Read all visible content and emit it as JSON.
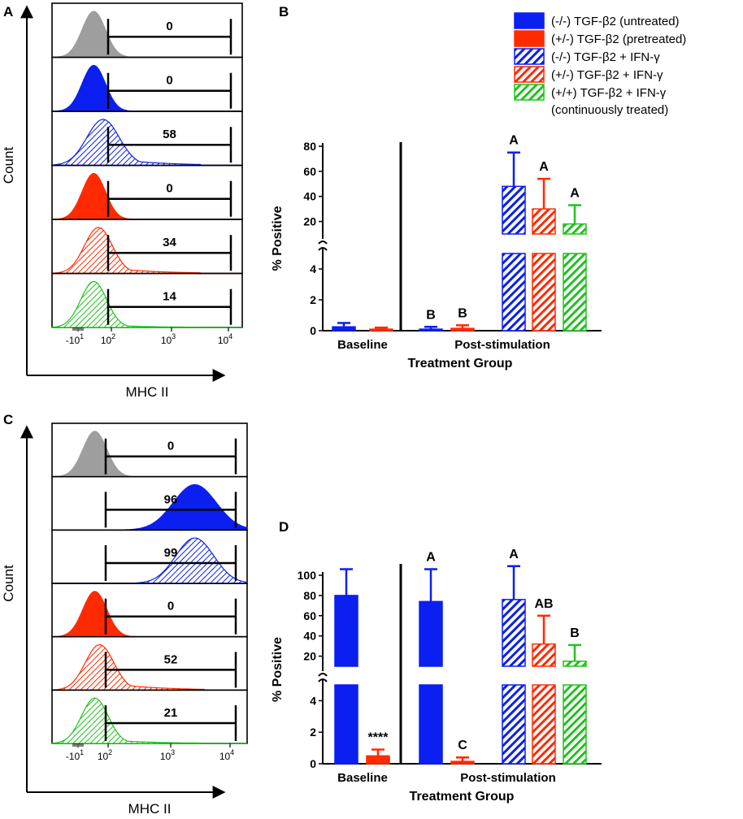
{
  "colors": {
    "blue": "#0b1ff0",
    "red": "#ff2a00",
    "green": "#22c21f",
    "gray": "#9e9e9e",
    "black": "#000000"
  },
  "panel_labels": {
    "a": "A",
    "b": "B",
    "c": "C",
    "d": "D"
  },
  "chart_data": [
    {
      "id": "A",
      "type": "histogram-stack",
      "xlabel": "MHC II",
      "ylabel": "Count",
      "x_ticks": [
        "-10",
        "10",
        "10",
        "10"
      ],
      "x_tick_exps": [
        "1",
        "2",
        "3",
        "4"
      ],
      "rows": [
        {
          "fill": "solid",
          "color": "gray",
          "peak": 1.3,
          "width": 0.25,
          "tail": 0,
          "gate_value": "0"
        },
        {
          "fill": "solid",
          "color": "blue",
          "peak": 1.3,
          "width": 0.25,
          "tail": 0,
          "gate_value": "0"
        },
        {
          "fill": "hatch",
          "color": "blue",
          "peak": 1.5,
          "width": 0.35,
          "tail": 0.55,
          "gate_value": "58"
        },
        {
          "fill": "solid",
          "color": "red",
          "peak": 1.3,
          "width": 0.25,
          "tail": 0,
          "gate_value": "0"
        },
        {
          "fill": "hatch",
          "color": "red",
          "peak": 1.4,
          "width": 0.3,
          "tail": 0.45,
          "gate_value": "34"
        },
        {
          "fill": "hatch",
          "color": "green",
          "peak": 1.3,
          "width": 0.28,
          "tail": 0.2,
          "gate_value": "14"
        }
      ]
    },
    {
      "id": "B",
      "type": "bar",
      "ylabel": "% Positive",
      "xlabel": "Treatment Group",
      "groups": [
        "Baseline",
        "Post-stimulation"
      ],
      "y_ticks_upper": [
        20,
        40,
        60,
        80
      ],
      "y_ticks_lower": [
        0,
        2,
        4
      ],
      "ylim_upper": [
        10,
        80
      ],
      "ylim_lower": [
        0,
        5
      ],
      "legend": [
        {
          "label": "(-/-) TGF-β2 (untreated)",
          "color": "blue",
          "fill": "solid"
        },
        {
          "label": "(+/-) TGF-β2 (pretreated)",
          "color": "red",
          "fill": "solid"
        },
        {
          "label": "(-/-) TGF-β2 + IFN-γ",
          "color": "blue",
          "fill": "hatch"
        },
        {
          "label": "(+/-) TGF-β2 + IFN-γ",
          "color": "red",
          "fill": "hatch"
        },
        {
          "label": "(+/+) TGF-β2 + IFN-γ",
          "color": "green",
          "fill": "hatch",
          "sublabel": "(continuously treated)"
        }
      ],
      "bars": [
        {
          "group": "Baseline",
          "series": "(-/-) untreated",
          "value": 0.25,
          "error": 0.25,
          "color": "blue",
          "fill": "solid",
          "letter": ""
        },
        {
          "group": "Baseline",
          "series": "(+/-) pretreated",
          "value": 0.1,
          "error": 0.1,
          "color": "red",
          "fill": "solid",
          "letter": ""
        },
        {
          "group": "Post-stimulation",
          "series": "(-/-) untreated",
          "value": 0.1,
          "error": 0.15,
          "color": "blue",
          "fill": "solid",
          "letter": "B"
        },
        {
          "group": "Post-stimulation",
          "series": "(+/-) pretreated",
          "value": 0.15,
          "error": 0.2,
          "color": "red",
          "fill": "solid",
          "letter": "B"
        },
        {
          "group": "Post-stimulation",
          "series": "(-/-) + IFN-γ",
          "value": 48,
          "error": 27,
          "color": "blue",
          "fill": "hatch",
          "letter": "A"
        },
        {
          "group": "Post-stimulation",
          "series": "(+/-) + IFN-γ",
          "value": 30,
          "error": 24,
          "color": "red",
          "fill": "hatch",
          "letter": "A"
        },
        {
          "group": "Post-stimulation",
          "series": "(+/+) + IFN-γ",
          "value": 18,
          "error": 15,
          "color": "green",
          "fill": "hatch",
          "letter": "A"
        }
      ]
    },
    {
      "id": "C",
      "type": "histogram-stack",
      "xlabel": "MHC II",
      "ylabel": "Count",
      "x_ticks": [
        "-10",
        "10",
        "10",
        "10"
      ],
      "x_tick_exps": [
        "1",
        "2",
        "3",
        "4"
      ],
      "rows": [
        {
          "fill": "solid",
          "color": "gray",
          "peak": 1.3,
          "width": 0.25,
          "tail": 0,
          "gate_value": "0"
        },
        {
          "fill": "solid",
          "color": "blue",
          "peak": 3.4,
          "width": 0.45,
          "tail": 0,
          "gate_value": "96"
        },
        {
          "fill": "hatch",
          "color": "blue",
          "peak": 3.4,
          "width": 0.4,
          "tail": 0,
          "gate_value": "99"
        },
        {
          "fill": "solid",
          "color": "red",
          "peak": 1.3,
          "width": 0.25,
          "tail": 0,
          "gate_value": "0"
        },
        {
          "fill": "hatch",
          "color": "red",
          "peak": 1.4,
          "width": 0.3,
          "tail": 0.55,
          "gate_value": "52"
        },
        {
          "fill": "hatch",
          "color": "green",
          "peak": 1.3,
          "width": 0.28,
          "tail": 0.3,
          "gate_value": "21"
        }
      ]
    },
    {
      "id": "D",
      "type": "bar",
      "ylabel": "% Positive",
      "xlabel": "Treatment Group",
      "groups": [
        "Baseline",
        "Post-stimulation"
      ],
      "y_ticks_upper": [
        20,
        40,
        60,
        80,
        100
      ],
      "y_ticks_lower": [
        0,
        2,
        4
      ],
      "ylim_upper": [
        10,
        100
      ],
      "ylim_lower": [
        0,
        5
      ],
      "bars": [
        {
          "group": "Baseline",
          "series": "(-/-) untreated",
          "value": 80,
          "error": 26,
          "color": "blue",
          "fill": "solid",
          "letter": ""
        },
        {
          "group": "Baseline",
          "series": "(+/-) pretreated",
          "value": 0.5,
          "error": 0.4,
          "color": "red",
          "fill": "solid",
          "letter": "****"
        },
        {
          "group": "Post-stimulation",
          "series": "(-/-) untreated",
          "value": 74,
          "error": 32,
          "color": "blue",
          "fill": "solid",
          "letter": "A"
        },
        {
          "group": "Post-stimulation",
          "series": "(+/-) pretreated",
          "value": 0.15,
          "error": 0.25,
          "color": "red",
          "fill": "solid",
          "letter": "C"
        },
        {
          "group": "Post-stimulation",
          "series": "(-/-) + IFN-γ",
          "value": 76,
          "error": 33,
          "color": "blue",
          "fill": "hatch",
          "letter": "A"
        },
        {
          "group": "Post-stimulation",
          "series": "(+/-) + IFN-γ",
          "value": 32,
          "error": 28,
          "color": "red",
          "fill": "hatch",
          "letter": "AB"
        },
        {
          "group": "Post-stimulation",
          "series": "(+/+) + IFN-γ",
          "value": 15,
          "error": 16,
          "color": "green",
          "fill": "hatch",
          "letter": "B"
        }
      ]
    }
  ]
}
